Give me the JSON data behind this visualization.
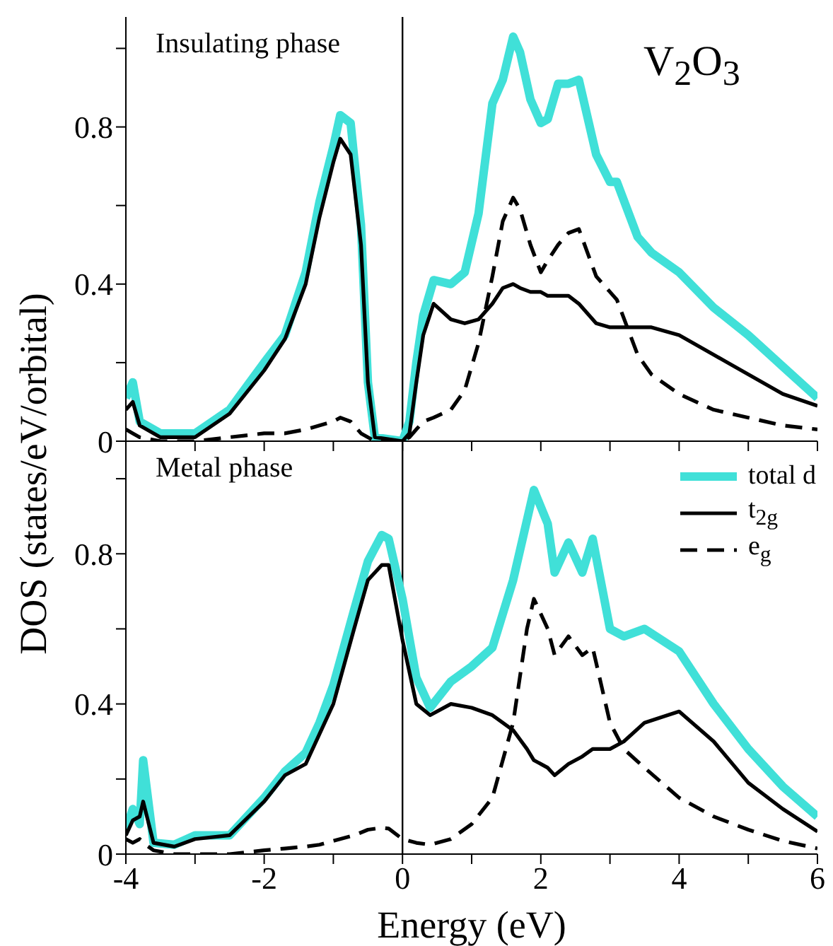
{
  "chart_data": [
    {
      "type": "line",
      "ylabel": "DOS (states/eV/orbital)",
      "annotations": [
        "Insulating phase",
        "V$_{2}$O$_{3}$"
      ],
      "x": [
        -4,
        -3.9,
        -3.8,
        -3.5,
        -3,
        -2.5,
        -2,
        -1.7,
        -1.4,
        -1.2,
        -1,
        -0.9,
        -0.75,
        -0.6,
        -0.5,
        -0.4,
        0,
        0.1,
        0.2,
        0.3,
        0.45,
        0.7,
        0.9,
        1.1,
        1.3,
        1.45,
        1.6,
        1.7,
        1.85,
        2,
        2.1,
        2.25,
        2.4,
        2.55,
        2.8,
        3,
        3.1,
        3.4,
        3.6,
        4,
        4.5,
        5,
        5.5,
        6
      ],
      "series": [
        {
          "color": "#40e0d8",
          "line_style": "solid",
          "values": [
            0.11,
            0.15,
            0.05,
            0.02,
            0.02,
            0.08,
            0.2,
            0.27,
            0.43,
            0.61,
            0.75,
            0.83,
            0.81,
            0.55,
            0.15,
            0.01,
            0,
            0.05,
            0.2,
            0.32,
            0.41,
            0.4,
            0.43,
            0.58,
            0.86,
            0.92,
            1.03,
            0.99,
            0.87,
            0.81,
            0.82,
            0.91,
            0.91,
            0.92,
            0.73,
            0.66,
            0.66,
            0.52,
            0.48,
            0.43,
            0.34,
            0.27,
            0.19,
            0.11
          ]
        },
        {
          "color": "#000000",
          "line_style": "solid",
          "values": [
            0.08,
            0.1,
            0.04,
            0.01,
            0.01,
            0.07,
            0.18,
            0.26,
            0.4,
            0.57,
            0.71,
            0.77,
            0.73,
            0.5,
            0.15,
            0.01,
            0,
            0.02,
            0.15,
            0.27,
            0.35,
            0.31,
            0.3,
            0.31,
            0.35,
            0.39,
            0.4,
            0.39,
            0.38,
            0.38,
            0.37,
            0.37,
            0.37,
            0.35,
            0.3,
            0.29,
            0.29,
            0.29,
            0.29,
            0.27,
            0.22,
            0.17,
            0.12,
            0.09
          ]
        },
        {
          "color": "#000000",
          "line_style": "dashed",
          "values": [
            0.03,
            0.02,
            0.01,
            0,
            0,
            0.01,
            0.02,
            0.02,
            0.03,
            0.04,
            0.05,
            0.06,
            0.05,
            0.02,
            0.01,
            0,
            0,
            0.01,
            0.03,
            0.05,
            0.06,
            0.08,
            0.13,
            0.25,
            0.42,
            0.56,
            0.62,
            0.59,
            0.5,
            0.43,
            0.46,
            0.5,
            0.53,
            0.54,
            0.42,
            0.38,
            0.36,
            0.22,
            0.17,
            0.12,
            0.08,
            0.06,
            0.04,
            0.03
          ]
        }
      ],
      "xlim": [
        -4,
        6
      ],
      "xticks": [
        -4,
        {
          "value": -3,
          "label": null
        },
        -2,
        {
          "value": -1,
          "label": null
        },
        0,
        {
          "value": 1,
          "label": null
        },
        2,
        {
          "value": 3,
          "label": null
        },
        4,
        {
          "value": 5,
          "label": null
        },
        6
      ],
      "ylim": [
        0,
        1.08
      ],
      "yticks": [
        0,
        {
          "value": 0.2,
          "label": null
        },
        0.4,
        {
          "value": 0.6,
          "label": null
        },
        0.8,
        {
          "value": 1,
          "label": null
        }
      ],
      "ref_lines": [
        {
          "axis": "x",
          "value": 0,
          "color": "#000000"
        }
      ],
      "tick_labels": "y",
      "grid": false,
      "legend": false,
      "marker": "none"
    },
    {
      "type": "line",
      "xlabel": "Energy (eV)",
      "annotations": [
        "Metal phase"
      ],
      "x": [
        -4,
        -3.9,
        -3.8,
        -3.75,
        -3.6,
        -3.3,
        -3,
        -2.5,
        -2,
        -1.7,
        -1.4,
        -1.2,
        -1,
        -0.7,
        -0.5,
        -0.3,
        -0.2,
        0,
        0.2,
        0.4,
        0.7,
        1,
        1.3,
        1.6,
        1.8,
        1.9,
        2.1,
        2.2,
        2.4,
        2.6,
        2.75,
        3,
        3.2,
        3.5,
        4,
        4.5,
        5,
        5.5,
        6
      ],
      "series": [
        {
          "name": "total d",
          "color": "#40e0d8",
          "line_style": "solid",
          "values": [
            0.065,
            0.12,
            0.08,
            0.25,
            0.03,
            0.025,
            0.05,
            0.05,
            0.15,
            0.22,
            0.27,
            0.35,
            0.45,
            0.65,
            0.78,
            0.85,
            0.84,
            0.68,
            0.47,
            0.39,
            0.46,
            0.5,
            0.55,
            0.73,
            0.89,
            0.97,
            0.88,
            0.75,
            0.83,
            0.75,
            0.84,
            0.6,
            0.58,
            0.6,
            0.54,
            0.4,
            0.28,
            0.18,
            0.1
          ]
        },
        {
          "name": "t$_{2g}$",
          "color": "#000000",
          "line_style": "solid",
          "values": [
            0.05,
            0.09,
            0.1,
            0.14,
            0.03,
            0.02,
            0.04,
            0.05,
            0.14,
            0.21,
            0.24,
            0.32,
            0.4,
            0.6,
            0.73,
            0.77,
            0.77,
            0.57,
            0.4,
            0.37,
            0.4,
            0.39,
            0.37,
            0.33,
            0.28,
            0.25,
            0.23,
            0.21,
            0.24,
            0.26,
            0.28,
            0.28,
            0.3,
            0.35,
            0.38,
            0.3,
            0.19,
            0.12,
            0.06
          ]
        },
        {
          "name": "e$_{g}$",
          "color": "#000000",
          "line_style": "dashed",
          "values": [
            0.04,
            0.03,
            0.04,
            0.03,
            0.01,
            0,
            0,
            0,
            0.01,
            0.015,
            0.02,
            0.025,
            0.035,
            0.05,
            0.065,
            0.07,
            0.068,
            0.04,
            0.03,
            0.025,
            0.04,
            0.08,
            0.15,
            0.35,
            0.6,
            0.68,
            0.6,
            0.53,
            0.58,
            0.53,
            0.55,
            0.35,
            0.28,
            0.23,
            0.15,
            0.1,
            0.065,
            0.035,
            0.015
          ]
        }
      ],
      "xlim": [
        -4,
        6
      ],
      "xticks": [
        -4,
        {
          "value": -3,
          "label": null
        },
        -2,
        {
          "value": -1,
          "label": null
        },
        0,
        {
          "value": 1,
          "label": null
        },
        2,
        {
          "value": 3,
          "label": null
        },
        4,
        {
          "value": 5,
          "label": null
        },
        6
      ],
      "ylim": [
        0,
        1.1
      ],
      "yticks": [
        0,
        {
          "value": 0.2,
          "label": null
        },
        0.4,
        {
          "value": 0.6,
          "label": null
        },
        0.8,
        {
          "value": 1,
          "label": null
        }
      ],
      "ref_lines": [
        {
          "axis": "x",
          "value": 0,
          "color": "#000000"
        }
      ],
      "grid": false,
      "legend": "top right",
      "marker": "none"
    }
  ]
}
